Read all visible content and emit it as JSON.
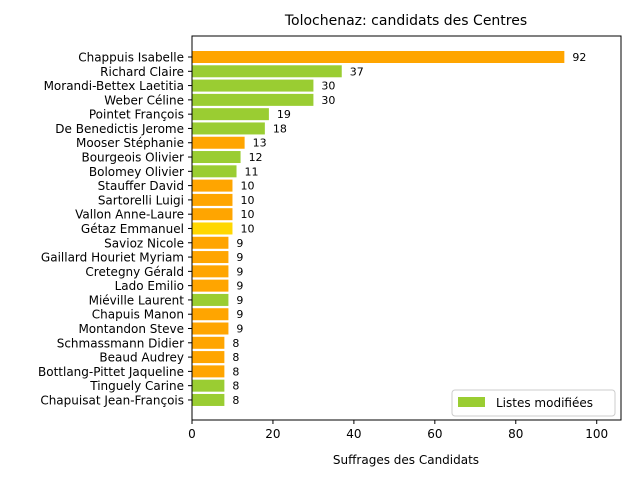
{
  "chart_data": {
    "type": "bar",
    "orientation": "horizontal",
    "title": "Tolochenaz: candidats des Centres",
    "xlabel": "Suffrages des Candidats",
    "ylabel": "",
    "xlim": [
      0,
      106
    ],
    "xticks": [
      "0",
      "20",
      "40",
      "60",
      "80",
      "100"
    ],
    "grid": false,
    "legend": {
      "label": "Listes modifiées",
      "color": "#9acd32",
      "placement": "lower-right"
    },
    "colors": {
      "orange": "#ffa500",
      "green": "#9acd32",
      "gold": "#ffd700"
    },
    "categories": [
      "Chappuis Isabelle",
      "Richard Claire",
      "Morandi-Bettex Laetitia",
      "Weber Céline",
      "Pointet François",
      "De Benedictis Jerome",
      "Mooser Stéphanie",
      "Bourgeois Olivier",
      "Bolomey Olivier",
      "Stauffer David",
      "Sartorelli Luigi",
      "Vallon Anne-Laure",
      "Gétaz Emmanuel",
      "Savioz Nicole",
      "Gaillard Houriet Myriam",
      "Cretegny Gérald",
      "Lado Emilio",
      "Miéville Laurent",
      "Chapuis Manon",
      "Montandon Steve",
      "Schmassmann Didier",
      "Beaud Audrey",
      "Bottlang-Pittet Jaqueline",
      "Tinguely Carine",
      "Chapuisat Jean-François"
    ],
    "values": [
      92,
      37,
      30,
      30,
      19,
      18,
      13,
      12,
      11,
      10,
      10,
      10,
      10,
      9,
      9,
      9,
      9,
      9,
      9,
      9,
      8,
      8,
      8,
      8,
      8
    ],
    "value_labels": [
      "92",
      "37",
      "30",
      "30",
      "19",
      "18",
      "13",
      "12",
      "11",
      "10",
      "10",
      "10",
      "10",
      "9",
      "9",
      "9",
      "9",
      "9",
      "9",
      "9",
      "8",
      "8",
      "8",
      "8",
      "8"
    ],
    "bar_colors": [
      "orange",
      "green",
      "green",
      "green",
      "green",
      "green",
      "orange",
      "green",
      "green",
      "orange",
      "orange",
      "orange",
      "gold",
      "orange",
      "orange",
      "orange",
      "orange",
      "green",
      "orange",
      "orange",
      "orange",
      "orange",
      "orange",
      "green",
      "green"
    ]
  }
}
